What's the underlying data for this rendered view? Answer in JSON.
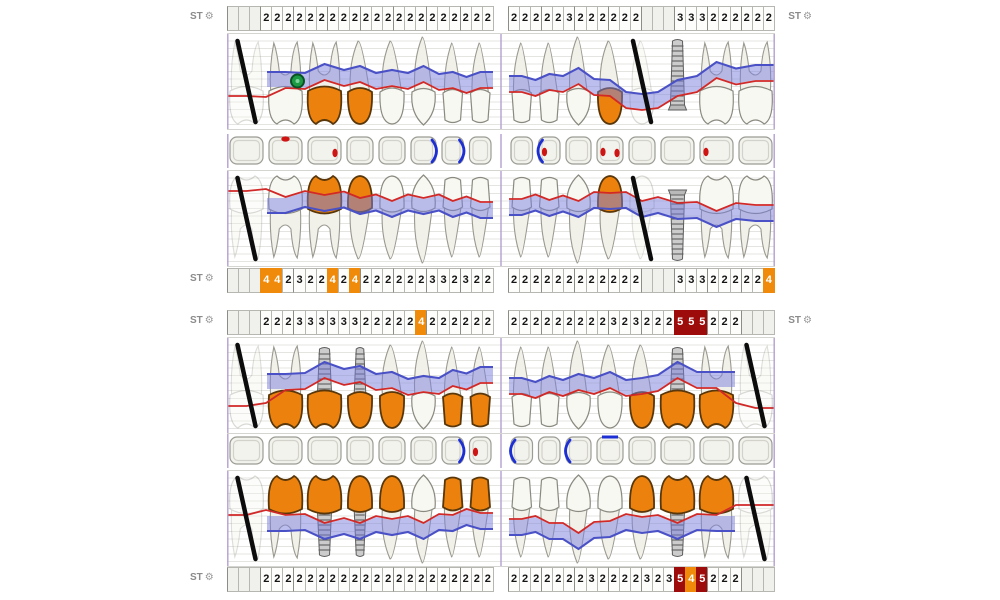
{
  "app": {
    "st_label": "ST"
  },
  "icons": {
    "gear": "⚙"
  },
  "colors": {
    "orange_box": "#ef8a0a",
    "red_box": "#9e0b0b",
    "crown_orange": "#ec820d",
    "crown_outline": "#59370a",
    "band_fill": "rgba(122,127,222,0.5)",
    "band_edge": "#4a51c6",
    "gingiva_line": "#d12828",
    "implant_fill": "#cccccc",
    "implant_line": "#5d5d5d",
    "marker_green": "#1b9a43",
    "marker_green_edge": "#0a5223",
    "missing_line": "#0c0c0c",
    "divider_purple": "#b49fd0",
    "tooth_fill": "#f8f8f2",
    "tooth_outline": "#8a8a80",
    "occ_fill": "#f3f3ee",
    "occ_outline": "#9c9c94",
    "occ_inner": "#d2d2ca",
    "occ_mark_blue": "#1c2fd4",
    "occ_mark_red": "#cf1414"
  },
  "st_rows": {
    "upper_buccal": {
      "cells_left": [
        "",
        "",
        "",
        "2",
        "2",
        "2",
        "2",
        "2",
        "2",
        "2",
        "2",
        "2",
        "2",
        "2",
        "2",
        "2",
        "2",
        "2",
        "2",
        "2",
        "2",
        "2",
        "2",
        "2"
      ],
      "cells_right": [
        "2",
        "2",
        "2",
        "2",
        "2",
        "3",
        "2",
        "2",
        "2",
        "2",
        "2",
        "2",
        "",
        "",
        "",
        "3",
        "3",
        "3",
        "2",
        "2",
        "2",
        "2",
        "2",
        "2"
      ]
    },
    "upper_palatal": {
      "cells_left": [
        "",
        "",
        "",
        "4o",
        "4o",
        "2",
        "3",
        "2",
        "2",
        "4o",
        "2",
        "4o",
        "2",
        "2",
        "2",
        "2",
        "2",
        "2",
        "3",
        "3",
        "2",
        "3",
        "2",
        "2"
      ],
      "cells_right": [
        "2",
        "2",
        "2",
        "2",
        "2",
        "2",
        "2",
        "2",
        "2",
        "2",
        "2",
        "2",
        "",
        "",
        "",
        "3",
        "3",
        "3",
        "2",
        "2",
        "2",
        "2",
        "2",
        "4o"
      ]
    },
    "lower_lingual": {
      "cells_left": [
        "",
        "",
        "",
        "2",
        "2",
        "2",
        "3",
        "3",
        "3",
        "3",
        "3",
        "3",
        "2",
        "2",
        "2",
        "2",
        "2",
        "4o",
        "2",
        "2",
        "2",
        "2",
        "2",
        "2"
      ],
      "cells_right": [
        "2",
        "2",
        "2",
        "2",
        "2",
        "2",
        "2",
        "2",
        "2",
        "3",
        "2",
        "3",
        "2",
        "2",
        "2",
        "5r",
        "5r",
        "5r",
        "2",
        "2",
        "2",
        "",
        "",
        ""
      ]
    },
    "lower_buccal": {
      "cells_left": [
        "",
        "",
        "",
        "2",
        "2",
        "2",
        "2",
        "2",
        "2",
        "2",
        "2",
        "2",
        "2",
        "2",
        "2",
        "2",
        "2",
        "2",
        "2",
        "2",
        "2",
        "2",
        "2",
        "2"
      ],
      "cells_right": [
        "2",
        "2",
        "2",
        "2",
        "2",
        "2",
        "2",
        "3",
        "2",
        "2",
        "2",
        "2",
        "3",
        "2",
        "3",
        "5r",
        "4o",
        "5r",
        "2",
        "2",
        "2",
        "",
        "",
        ""
      ]
    }
  },
  "teeth": {
    "upper": [
      {
        "fdi": "18",
        "type": "molar",
        "status": "missing"
      },
      {
        "fdi": "17",
        "type": "molar",
        "status": "normal"
      },
      {
        "fdi": "16",
        "type": "molar",
        "status": "crown"
      },
      {
        "fdi": "15",
        "type": "premolar",
        "status": "crown"
      },
      {
        "fdi": "14",
        "type": "premolar",
        "status": "normal"
      },
      {
        "fdi": "13",
        "type": "canine",
        "status": "normal"
      },
      {
        "fdi": "12",
        "type": "incisor",
        "status": "normal"
      },
      {
        "fdi": "11",
        "type": "incisor",
        "status": "normal"
      },
      {
        "fdi": "21",
        "type": "incisor",
        "status": "normal"
      },
      {
        "fdi": "22",
        "type": "incisor",
        "status": "normal"
      },
      {
        "fdi": "23",
        "type": "canine",
        "status": "normal"
      },
      {
        "fdi": "24",
        "type": "premolar",
        "status": "crown"
      },
      {
        "fdi": "25",
        "type": "premolar",
        "status": "missing"
      },
      {
        "fdi": "26",
        "type": "molar",
        "status": "implant"
      },
      {
        "fdi": "27",
        "type": "molar",
        "status": "normal"
      },
      {
        "fdi": "28",
        "type": "molar",
        "status": "normal"
      }
    ],
    "lower": [
      {
        "fdi": "48",
        "type": "molar",
        "status": "missing"
      },
      {
        "fdi": "47",
        "type": "molar",
        "status": "crown"
      },
      {
        "fdi": "46",
        "type": "molar",
        "status": "implant_crown"
      },
      {
        "fdi": "45",
        "type": "premolar",
        "status": "implant_crown"
      },
      {
        "fdi": "44",
        "type": "premolar",
        "status": "crown"
      },
      {
        "fdi": "43",
        "type": "canine",
        "status": "normal"
      },
      {
        "fdi": "42",
        "type": "incisor",
        "status": "crown"
      },
      {
        "fdi": "41",
        "type": "incisor",
        "status": "crown"
      },
      {
        "fdi": "31",
        "type": "incisor",
        "status": "normal"
      },
      {
        "fdi": "32",
        "type": "incisor",
        "status": "normal"
      },
      {
        "fdi": "33",
        "type": "canine",
        "status": "normal"
      },
      {
        "fdi": "34",
        "type": "premolar",
        "status": "normal"
      },
      {
        "fdi": "35",
        "type": "premolar",
        "status": "crown"
      },
      {
        "fdi": "36",
        "type": "molar",
        "status": "implant_crown"
      },
      {
        "fdi": "37",
        "type": "molar",
        "status": "crown"
      },
      {
        "fdi": "38",
        "type": "molar",
        "status": "missing"
      }
    ]
  },
  "occlusal": {
    "upper": [
      [],
      [
        "dot-top"
      ],
      [
        "dot-right"
      ],
      [],
      [],
      [
        "bracket-right"
      ],
      [
        "bracket-right"
      ],
      [],
      [],
      [
        "bracket-left",
        "dot-left"
      ],
      [],
      [
        "dot-left",
        "dot-right"
      ],
      [],
      [],
      [
        "dot-left"
      ],
      []
    ],
    "lower": [
      [],
      [],
      [],
      [],
      [],
      [],
      [
        "bracket-right"
      ],
      [
        "dot-left"
      ],
      [
        "bracket-left"
      ],
      [],
      [
        "bracket-left"
      ],
      [
        "line-top"
      ],
      [],
      [],
      [],
      []
    ]
  },
  "views": {
    "upper_buccal": {
      "orient": "down",
      "red": [
        62,
        54,
        46,
        48,
        52,
        48,
        54,
        54,
        58,
        56,
        50,
        62,
        76,
        62,
        44,
        47
      ],
      "gaps": [
        0
      ],
      "marker_index": 1
    },
    "upper_palatal": {
      "orient": "up",
      "red": [
        20,
        26,
        24,
        27,
        30,
        27,
        30,
        31,
        28,
        29,
        30,
        22,
        30,
        32,
        40,
        34
      ],
      "gaps": [
        0
      ]
    },
    "lower_lingual": {
      "orient": "down",
      "red": [
        68,
        52,
        40,
        44,
        50,
        54,
        48,
        45,
        56,
        54,
        52,
        50,
        56,
        40,
        50,
        70
      ],
      "gaps": [
        0,
        15
      ]
    },
    "lower_buccal": {
      "orient": "up",
      "red": [
        44,
        44,
        52,
        52,
        48,
        52,
        44,
        42,
        48,
        52,
        62,
        50,
        46,
        52,
        44,
        34
      ],
      "gaps": [
        0,
        15
      ]
    }
  }
}
